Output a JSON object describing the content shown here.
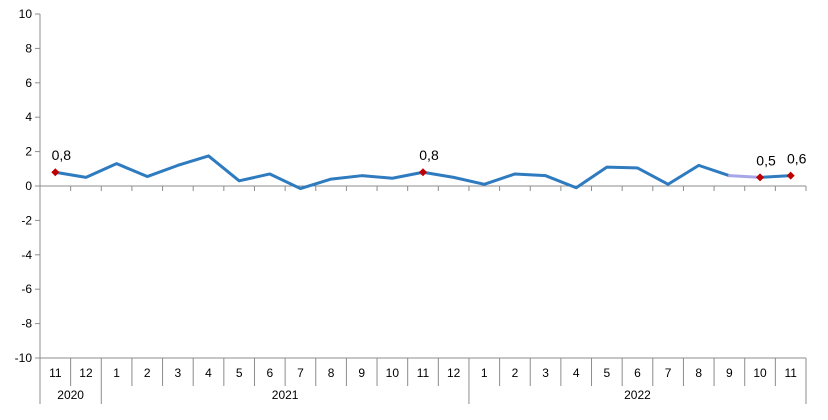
{
  "chart_data": {
    "type": "line",
    "title": "",
    "xlabel": "",
    "ylabel": "",
    "ylim": [
      -10,
      10
    ],
    "y_ticks": [
      -10,
      -8,
      -6,
      -4,
      -2,
      0,
      2,
      4,
      6,
      8,
      10
    ],
    "grid": false,
    "legend": "none",
    "categories": [
      "11",
      "12",
      "1",
      "2",
      "3",
      "4",
      "5",
      "6",
      "7",
      "8",
      "9",
      "10",
      "11",
      "12",
      "1",
      "2",
      "3",
      "4",
      "5",
      "6",
      "7",
      "8",
      "9",
      "10",
      "11"
    ],
    "year_groups": [
      {
        "label": "2020",
        "count": 2
      },
      {
        "label": "2021",
        "count": 12
      },
      {
        "label": "2022",
        "count": 11
      }
    ],
    "series": [
      {
        "color": "#2e7bbf",
        "values": [
          0.8,
          0.5,
          1.3,
          0.55,
          1.2,
          1.75,
          0.3,
          0.7,
          -0.15,
          0.4,
          0.6,
          0.45,
          0.8,
          0.5,
          0.1,
          0.7,
          0.6,
          -0.1,
          1.1,
          1.05,
          0.1,
          1.2,
          0.6,
          0.5,
          0.6
        ]
      }
    ],
    "highlighted": [
      {
        "index": 0,
        "label": "0,8"
      },
      {
        "index": 12,
        "label": "0,8"
      },
      {
        "index": 23,
        "label": "0,5"
      },
      {
        "index": 24,
        "label": "0,6"
      }
    ],
    "marker_color": "#c00000",
    "last_segment_color": "#a6a6e8"
  }
}
